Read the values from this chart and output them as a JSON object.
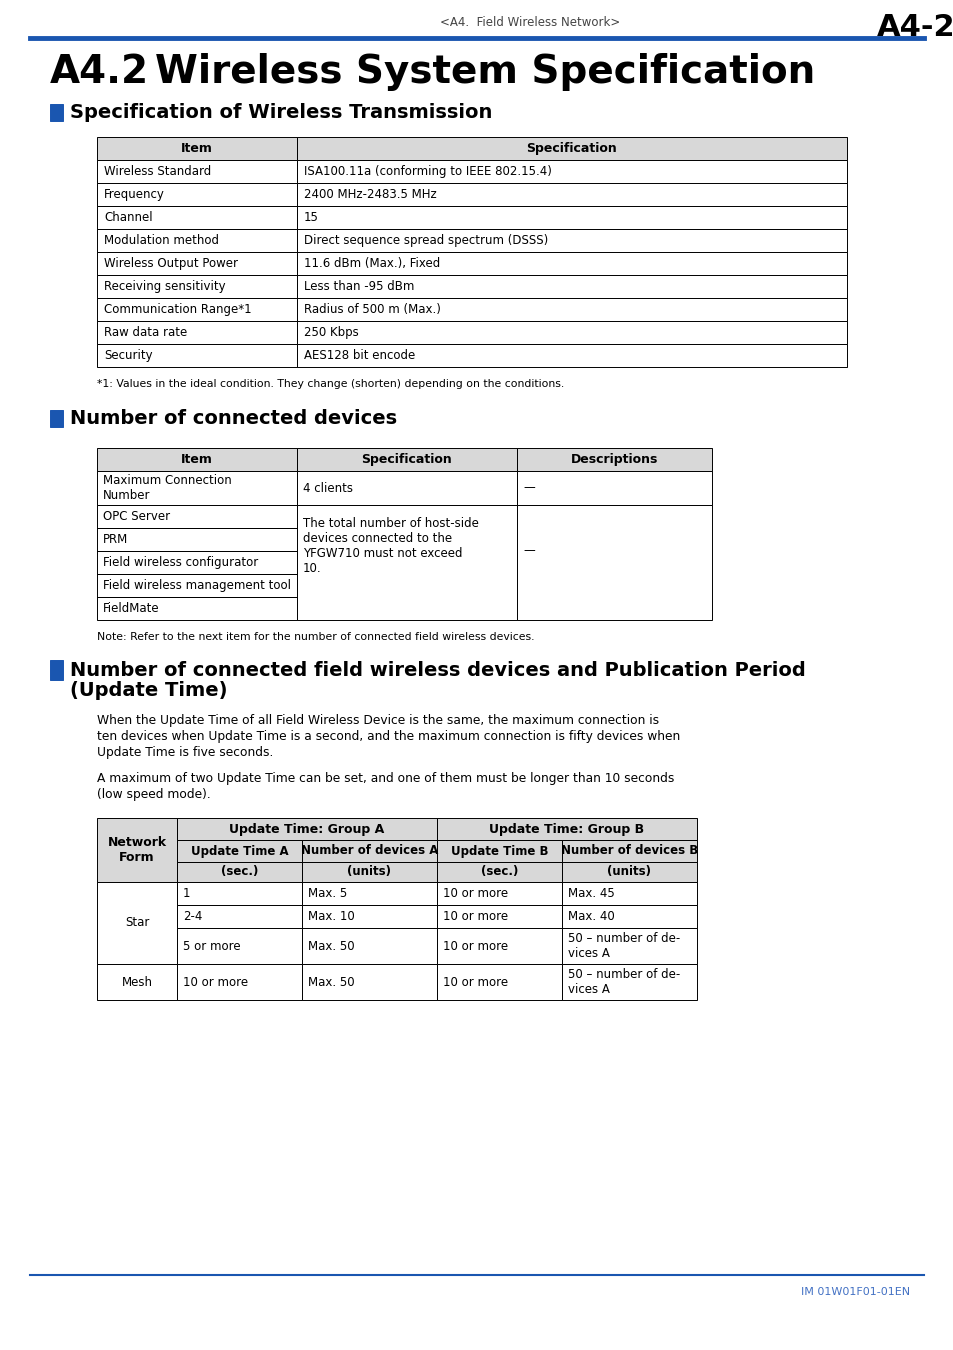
{
  "page_header_left": "<A4.  Field Wireless Network>",
  "page_header_right": "A4-2",
  "main_title_part1": "A4.2",
  "main_title_part2": "Wireless System Specification",
  "section1_title": "Specification of Wireless Transmission",
  "section1_table_headers": [
    "Item",
    "Specification"
  ],
  "section1_table_rows": [
    [
      "Wireless Standard",
      "ISA100.11a (conforming to IEEE 802.15.4)"
    ],
    [
      "Frequency",
      "2400 MHz-2483.5 MHz"
    ],
    [
      "Channel",
      "15"
    ],
    [
      "Modulation method",
      "Direct sequence spread spectrum (DSSS)"
    ],
    [
      "Wireless Output Power",
      "11.6 dBm (Max.), Fixed"
    ],
    [
      "Receiving sensitivity",
      "Less than -95 dBm"
    ],
    [
      "Communication Range*1",
      "Radius of 500 m (Max.)"
    ],
    [
      "Raw data rate",
      "250 Kbps"
    ],
    [
      "Security",
      "AES128 bit encode"
    ]
  ],
  "footnote1": "*1: Values in the ideal condition. They change (shorten) depending on the conditions.",
  "section2_title": "Number of connected devices",
  "section2_table_headers": [
    "Item",
    "Specification",
    "Descriptions"
  ],
  "section2_row0_item": "Maximum Connection\nNumber",
  "section2_row0_spec": "4 clients",
  "section2_row0_desc": "—",
  "section2_items_1to5": [
    "OPC Server",
    "PRM",
    "Field wireless configurator",
    "Field wireless management tool",
    "FieldMate"
  ],
  "section2_merged_spec": "The total number of host-side\ndevices connected to the\nYFGW710 must not exceed\n10.",
  "section2_merged_desc": "—",
  "footnote2": "Note: Refer to the next item for the number of connected field wireless devices.",
  "section3_title_line1": "Number of connected field wireless devices and Publication Period",
  "section3_title_line2": "(Update Time)",
  "section3_para1_line1": "When the Update Time of all Field Wireless Device is the same, the maximum connection is",
  "section3_para1_line2": "ten devices when Update Time is a second, and the maximum connection is fifty devices when",
  "section3_para1_line3": "Update Time is five seconds.",
  "section3_para2_line1": "A maximum of two Update Time can be set, and one of them must be longer than 10 seconds",
  "section3_para2_line2": "(low speed mode).",
  "s3_grpA_header": "Update Time: Group A",
  "s3_grpB_header": "Update Time: Group B",
  "s3_nf_header": "Network\nForm",
  "s3_col_hdrs": [
    "Update Time A",
    "Number of devices A",
    "Update Time B",
    "Number of devices B"
  ],
  "s3_col_units": [
    "(sec.)",
    "(units)",
    "(sec.)",
    "(units)"
  ],
  "s3_rows": [
    [
      "Star",
      "1",
      "Max. 5",
      "10 or more",
      "Max. 45"
    ],
    [
      "",
      "2-4",
      "Max. 10",
      "10 or more",
      "Max. 40"
    ],
    [
      "",
      "5 or more",
      "Max. 50",
      "10 or more",
      "50 – number of de-\nvices A"
    ],
    [
      "Mesh",
      "10 or more",
      "Max. 50",
      "10 or more",
      "50 – number of de-\nvices A"
    ]
  ],
  "footer_text": "IM 01W01F01-01EN",
  "blue_color": "#1a56b0",
  "table_header_bg": "#d8d8d8",
  "border_color": "#000000",
  "bg_color": "#ffffff",
  "text_color": "#000000"
}
